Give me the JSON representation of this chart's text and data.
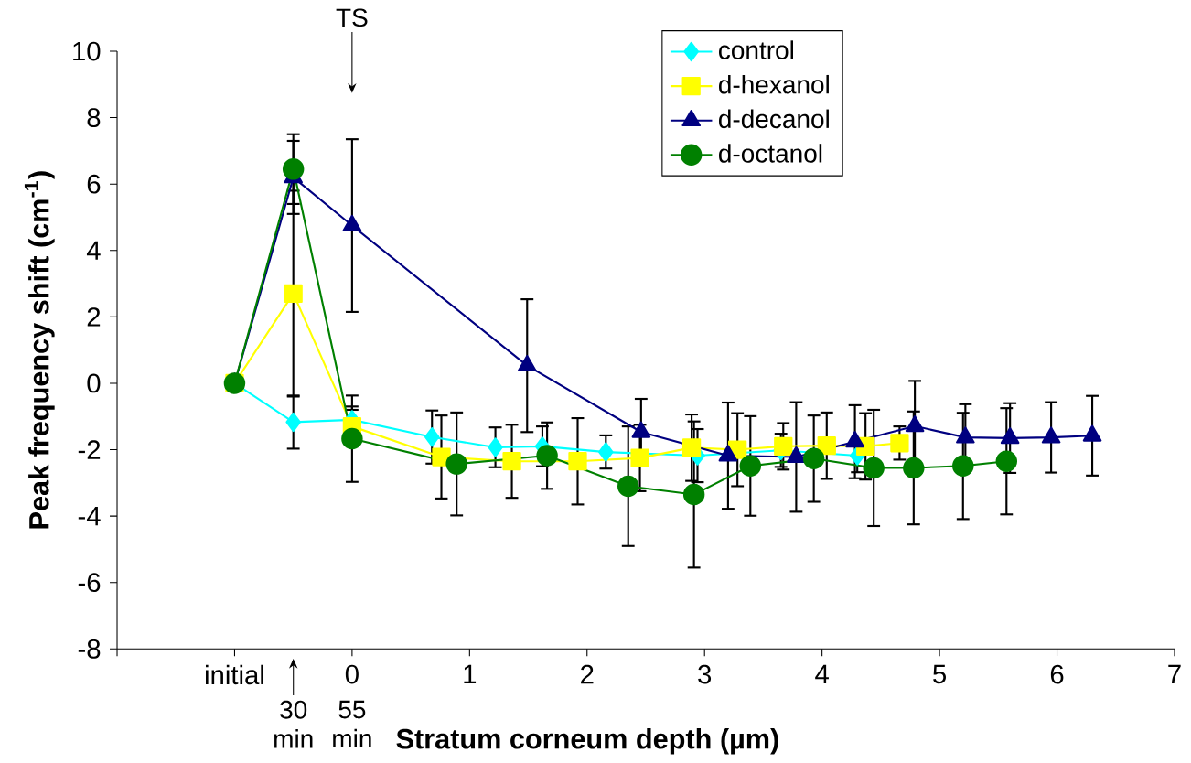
{
  "chart_data": {
    "type": "line",
    "xlabel": "Stratum corneum depth (µm)",
    "ylabel": "Peak frequency shift (cm$^{-1}$)",
    "xlim": [
      -2,
      7
    ],
    "ylim": [
      -8,
      10
    ],
    "xticks": [
      {
        "value": -2,
        "label": null
      },
      {
        "value": -1,
        "label": "initial"
      },
      0,
      1,
      2,
      3,
      4,
      5,
      6,
      7
    ],
    "yticks": [
      -8,
      -6,
      -4,
      -2,
      0,
      2,
      4,
      6,
      8,
      10
    ],
    "legend": "top",
    "grid": false,
    "series": [
      {
        "name": "control",
        "color": "#00ffff",
        "marker": "diamond",
        "x": [
          -1,
          -0.5,
          0,
          0.68,
          1.22,
          1.62,
          2.16,
          2.94,
          3.65,
          4.3
        ],
        "values": [
          0,
          -1.17,
          -1.1,
          -1.62,
          -1.93,
          -1.9,
          -2.07,
          -2.18,
          -2.02,
          -2.18
        ],
        "errors": [
          null,
          0.8,
          0.4,
          0.8,
          0.6,
          0.6,
          0.5,
          0.8,
          0.5,
          0.5
        ]
      },
      {
        "name": "d-hexanol",
        "color": "#ffff00",
        "marker": "square",
        "x": [
          -1,
          -0.5,
          0,
          0.76,
          1.36,
          1.92,
          2.45,
          2.89,
          3.28,
          3.67,
          4.04,
          4.37,
          4.66
        ],
        "values": [
          0,
          2.7,
          -1.3,
          -2.22,
          -2.35,
          -2.35,
          -2.25,
          -1.94,
          -2.0,
          -1.9,
          -1.88,
          -1.9,
          -1.8
        ],
        "errors": [
          null,
          3.1,
          0.5,
          1.25,
          1.1,
          1.3,
          1.0,
          1.0,
          1.1,
          0.7,
          1.0,
          1.0,
          0.5
        ]
      },
      {
        "name": "d-decanol",
        "color": "#000080",
        "marker": "triangle",
        "x": [
          -1,
          -0.5,
          0,
          1.49,
          2.46,
          3.2,
          3.78,
          4.28,
          4.79,
          5.22,
          5.6,
          5.95,
          6.3
        ],
        "values": [
          0,
          6.2,
          4.75,
          0.53,
          -1.47,
          -2.18,
          -2.22,
          -1.76,
          -1.29,
          -1.63,
          -1.65,
          -1.63,
          -1.58
        ],
        "errors": [
          null,
          1.1,
          2.6,
          2.0,
          1.0,
          1.6,
          1.65,
          1.1,
          1.36,
          1.0,
          1.05,
          1.06,
          1.2
        ]
      },
      {
        "name": "d-octanol",
        "color": "#008000",
        "marker": "circle",
        "x": [
          -1,
          -0.5,
          0,
          0.89,
          1.66,
          2.35,
          2.91,
          3.39,
          3.93,
          4.44,
          4.78,
          5.2,
          5.57
        ],
        "values": [
          0,
          6.45,
          -1.67,
          -2.43,
          -2.18,
          -3.1,
          -3.35,
          -2.49,
          -2.27,
          -2.55,
          -2.55,
          -2.49,
          -2.35
        ],
        "errors": [
          null,
          1.05,
          1.3,
          1.55,
          1.0,
          1.8,
          2.2,
          1.5,
          1.3,
          1.75,
          1.7,
          1.6,
          1.6
        ]
      }
    ],
    "annotations": [
      "TS",
      "30 min",
      "55 min"
    ]
  }
}
